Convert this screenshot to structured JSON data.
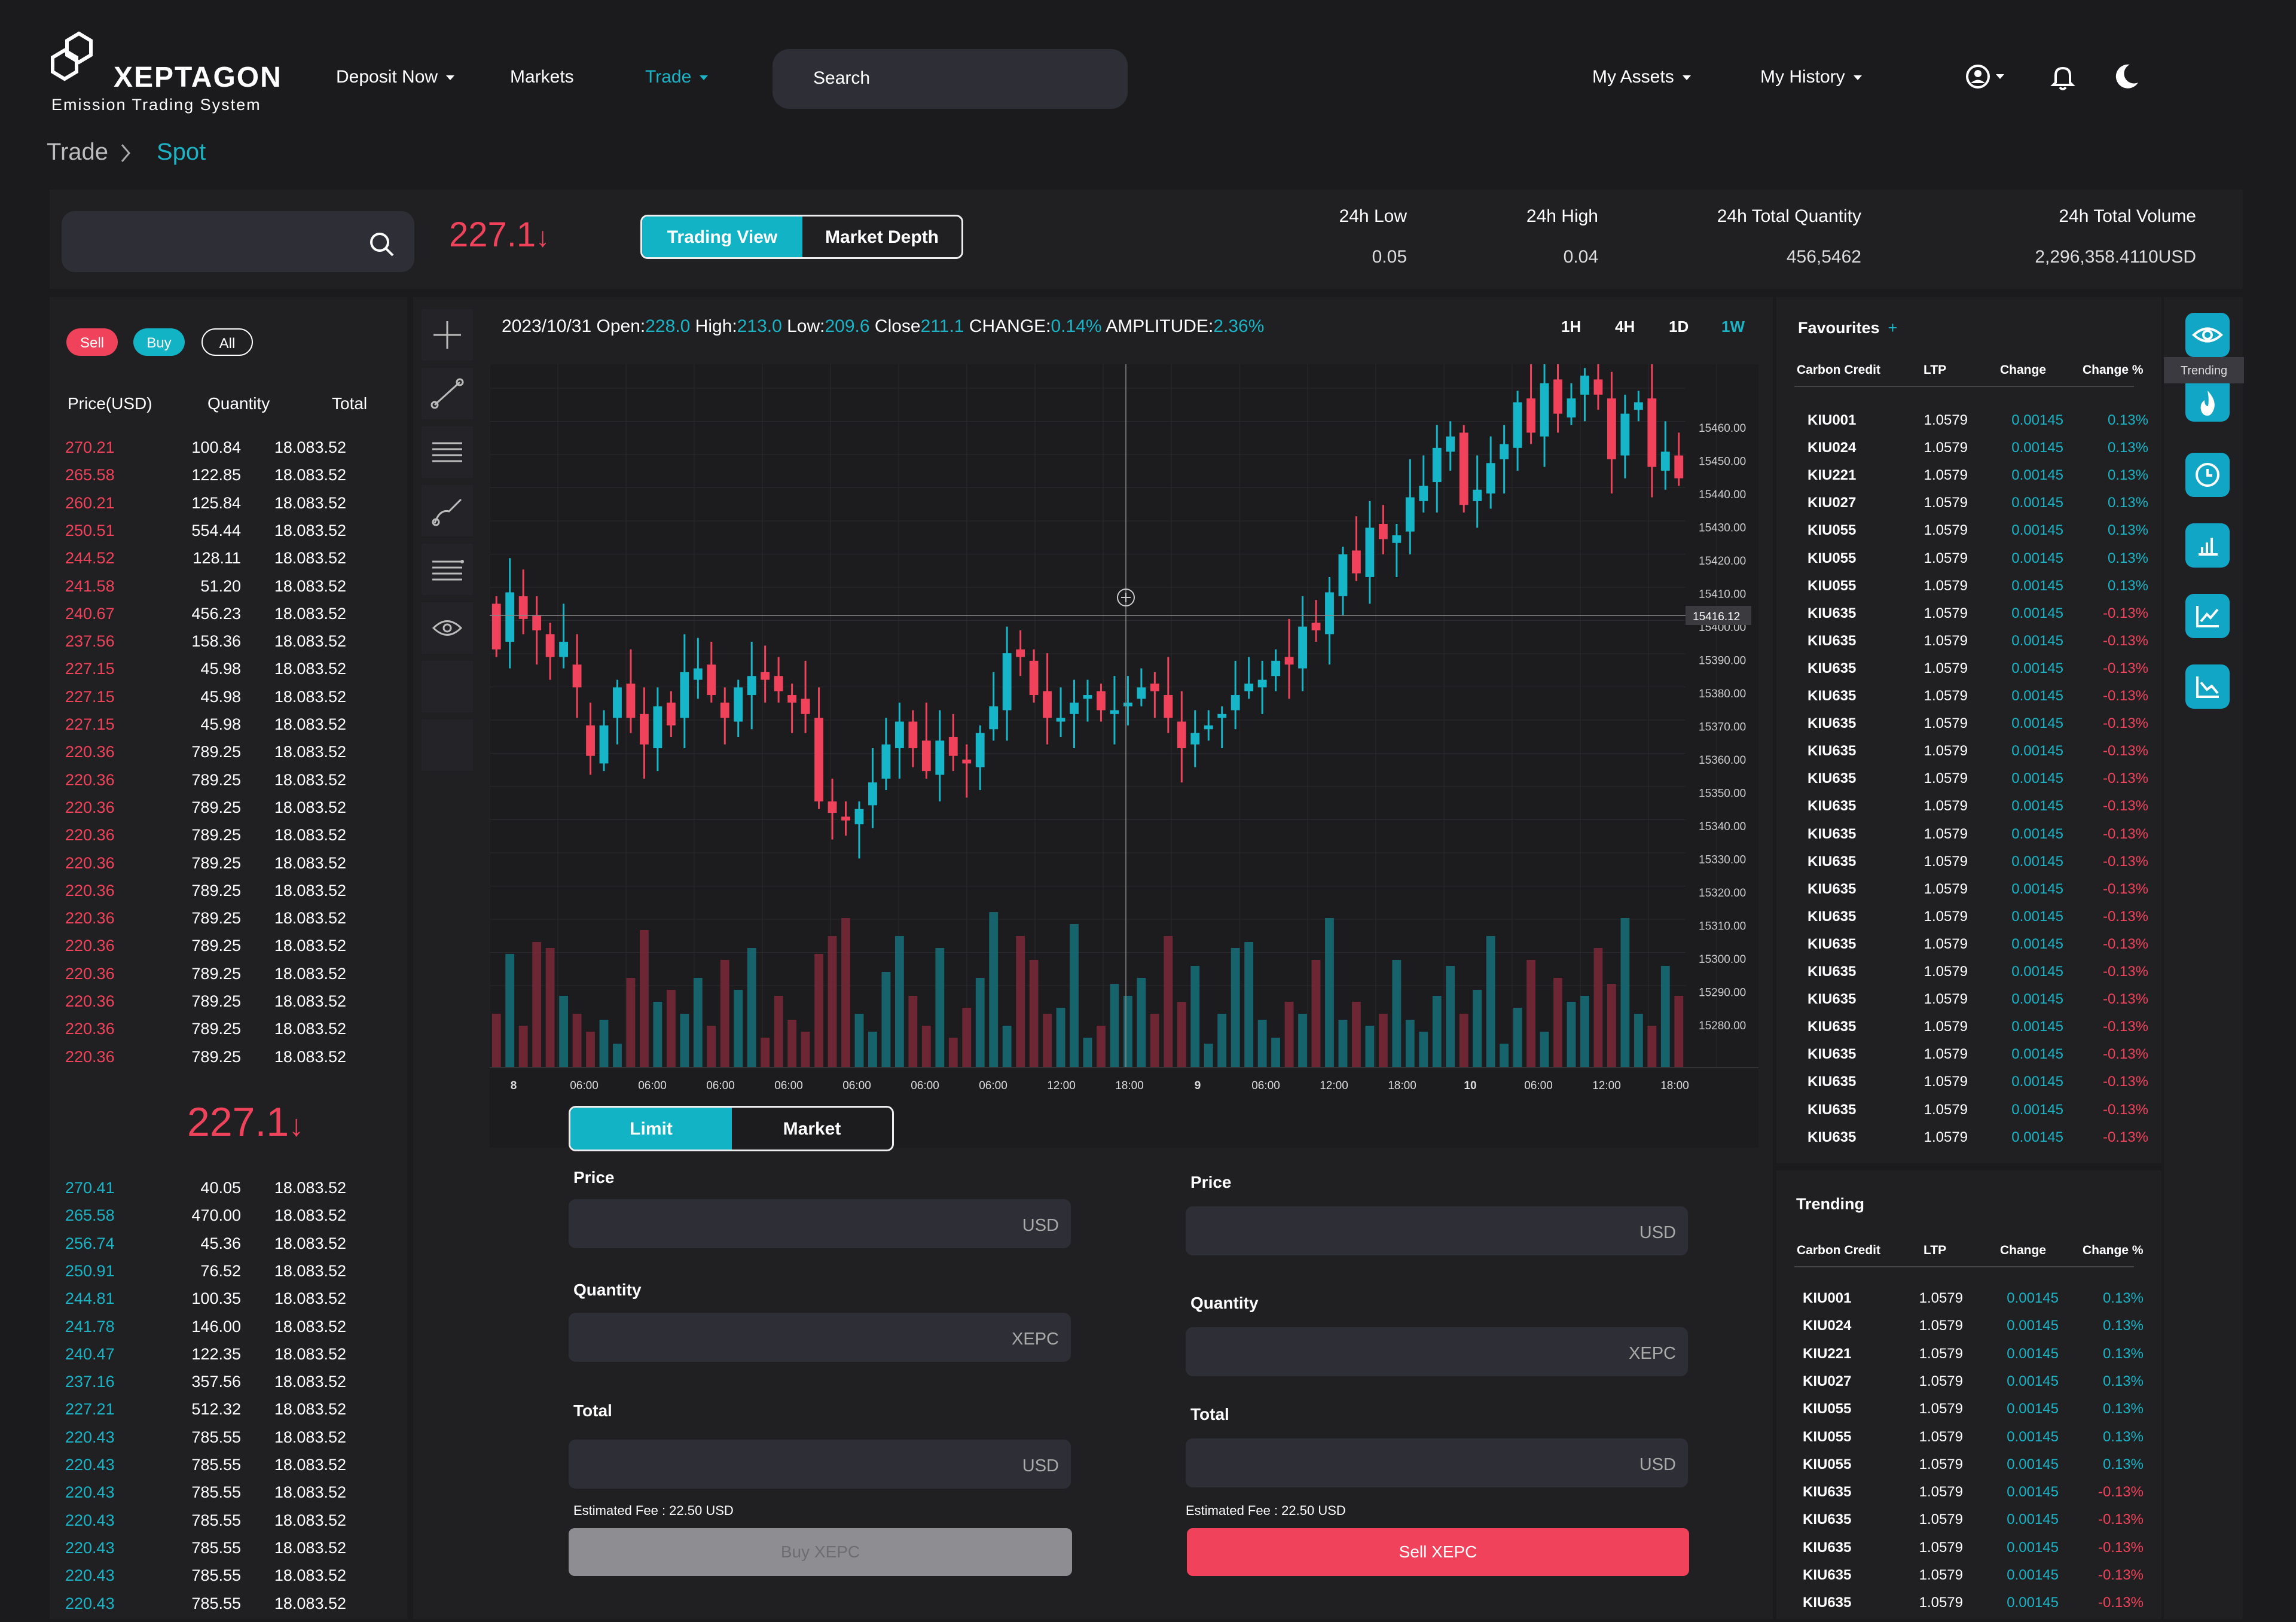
{
  "brand": {
    "name": "XEPTAGON",
    "tagline": "Emission Trading System"
  },
  "nav": {
    "deposit": "Deposit Now",
    "markets": "Markets",
    "trade": "Trade",
    "search_placeholder": "Search",
    "my_assets": "My Assets",
    "my_history": "My History"
  },
  "breadcrumb": {
    "root": "Trade",
    "current": "Spot"
  },
  "ticker": {
    "price": "227.1",
    "view_tabs": [
      "Trading View",
      "Market Depth"
    ],
    "stats": [
      {
        "label": "24h Low",
        "value": "0.05"
      },
      {
        "label": "24h High",
        "value": "0.04"
      },
      {
        "label": "24h Total Quantity",
        "value": "456,5462"
      },
      {
        "label": "24h Total Volume",
        "value": "2,296,358.4110USD"
      }
    ]
  },
  "orderbook": {
    "filters": [
      "Sell",
      "Buy",
      "All"
    ],
    "headers": [
      "Price(USD)",
      "Quantity",
      "Total"
    ],
    "sells": [
      [
        "270.21",
        "100.84",
        "18.083.52"
      ],
      [
        "265.58",
        "122.85",
        "18.083.52"
      ],
      [
        "260.21",
        "125.84",
        "18.083.52"
      ],
      [
        "250.51",
        "554.44",
        "18.083.52"
      ],
      [
        "244.52",
        "128.11",
        "18.083.52"
      ],
      [
        "241.58",
        "51.20",
        "18.083.52"
      ],
      [
        "240.67",
        "456.23",
        "18.083.52"
      ],
      [
        "237.56",
        "158.36",
        "18.083.52"
      ],
      [
        "227.15",
        "45.98",
        "18.083.52"
      ],
      [
        "227.15",
        "45.98",
        "18.083.52"
      ],
      [
        "227.15",
        "45.98",
        "18.083.52"
      ],
      [
        "220.36",
        "789.25",
        "18.083.52"
      ],
      [
        "220.36",
        "789.25",
        "18.083.52"
      ],
      [
        "220.36",
        "789.25",
        "18.083.52"
      ],
      [
        "220.36",
        "789.25",
        "18.083.52"
      ],
      [
        "220.36",
        "789.25",
        "18.083.52"
      ],
      [
        "220.36",
        "789.25",
        "18.083.52"
      ],
      [
        "220.36",
        "789.25",
        "18.083.52"
      ],
      [
        "220.36",
        "789.25",
        "18.083.52"
      ],
      [
        "220.36",
        "789.25",
        "18.083.52"
      ],
      [
        "220.36",
        "789.25",
        "18.083.52"
      ],
      [
        "220.36",
        "789.25",
        "18.083.52"
      ],
      [
        "220.36",
        "789.25",
        "18.083.52"
      ]
    ],
    "mid_price": "227.1",
    "buys": [
      [
        "270.41",
        "40.05",
        "18.083.52"
      ],
      [
        "265.58",
        "470.00",
        "18.083.52"
      ],
      [
        "256.74",
        "45.36",
        "18.083.52"
      ],
      [
        "250.91",
        "76.52",
        "18.083.52"
      ],
      [
        "244.81",
        "100.35",
        "18.083.52"
      ],
      [
        "241.78",
        "146.00",
        "18.083.52"
      ],
      [
        "240.47",
        "122.35",
        "18.083.52"
      ],
      [
        "237.16",
        "357.56",
        "18.083.52"
      ],
      [
        "227.21",
        "512.32",
        "18.083.52"
      ],
      [
        "220.43",
        "785.55",
        "18.083.52"
      ],
      [
        "220.43",
        "785.55",
        "18.083.52"
      ],
      [
        "220.43",
        "785.55",
        "18.083.52"
      ],
      [
        "220.43",
        "785.55",
        "18.083.52"
      ],
      [
        "220.43",
        "785.55",
        "18.083.52"
      ],
      [
        "220.43",
        "785.55",
        "18.083.52"
      ],
      [
        "220.43",
        "785.55",
        "18.083.52"
      ]
    ]
  },
  "chart_info": {
    "date": "2023/10/31",
    "open_label": "Open:",
    "open": "228.0",
    "high_label": "High:",
    "high": "213.0",
    "low_label": "Low:",
    "low": "209.6",
    "close_label": "Close",
    "close": "211.1",
    "change_label": "CHANGE:",
    "change": "0.14%",
    "amp_label": "AMPLITUDE:",
    "amp": "2.36%",
    "timeframes": [
      "1H",
      "4H",
      "1D",
      "1W"
    ]
  },
  "chart_data": {
    "type": "candlestick",
    "y_ticks": [
      "15460.00",
      "15450.00",
      "15440.00",
      "15430.00",
      "15420.00",
      "15410.00",
      "15400.00",
      "15390.00",
      "15380.00",
      "15370.00",
      "15360.00",
      "15350.00",
      "15340.00",
      "15330.00",
      "15320.00",
      "15310.00",
      "15300.00",
      "15290.00",
      "15280.00"
    ],
    "crosshair_label": "15416.12",
    "x_ticks": [
      "8",
      "06:00",
      "06:00",
      "06:00",
      "06:00",
      "06:00",
      "06:00",
      "06:00",
      "12:00",
      "18:00",
      "9",
      "06:00",
      "12:00",
      "18:00",
      "10",
      "06:00",
      "12:00",
      "18:00"
    ],
    "ylim": [
      15280,
      15465
    ],
    "closes": [
      15390,
      15405,
      15398,
      15395,
      15388,
      15392,
      15380,
      15362,
      15370,
      15380,
      15372,
      15365,
      15375,
      15370,
      15384,
      15385,
      15378,
      15372,
      15380,
      15383,
      15382,
      15379,
      15376,
      15373,
      15350,
      15347,
      15345,
      15348,
      15355,
      15365,
      15371,
      15364,
      15358,
      15366,
      15362,
      15360,
      15368,
      15375,
      15389,
      15388,
      15378,
      15372,
      15372,
      15376,
      15378,
      15374,
      15374,
      15376,
      15380,
      15379,
      15372,
      15364,
      15368,
      15370,
      15373,
      15378,
      15381,
      15382,
      15387,
      15386,
      15396,
      15395,
      15405,
      15415,
      15410,
      15422,
      15419,
      15420,
      15430,
      15433,
      15443,
      15446,
      15428,
      15432,
      15439,
      15444,
      15455,
      15447,
      15460,
      15452,
      15456,
      15462,
      15457,
      15440,
      15452,
      15455,
      15438,
      15442,
      15435
    ],
    "opens": [
      15402,
      15392,
      15404,
      15399,
      15394,
      15388,
      15386,
      15370,
      15360,
      15372,
      15381,
      15373,
      15364,
      15376,
      15372,
      15382,
      15386,
      15376,
      15371,
      15378,
      15384,
      15383,
      15378,
      15377,
      15372,
      15350,
      15346,
      15344,
      15349,
      15356,
      15364,
      15371,
      15366,
      15357,
      15367,
      15361,
      15359,
      15369,
      15374,
      15390,
      15387,
      15379,
      15371,
      15373,
      15377,
      15379,
      15373,
      15375,
      15377,
      15381,
      15378,
      15371,
      15365,
      15369,
      15372,
      15374,
      15379,
      15380,
      15383,
      15388,
      15385,
      15397,
      15394,
      15404,
      15416,
      15409,
      15423,
      15418,
      15421,
      15429,
      15434,
      15442,
      15447,
      15429,
      15431,
      15440,
      15443,
      15456,
      15446,
      15461,
      15451,
      15457,
      15461,
      15456,
      15441,
      15453,
      15456,
      15437,
      15441
    ],
    "volumes": [
      18,
      38,
      14,
      42,
      40,
      24,
      18,
      12,
      16,
      8,
      30,
      46,
      22,
      26,
      18,
      30,
      14,
      36,
      26,
      40,
      10,
      24,
      16,
      12,
      38,
      44,
      50,
      18,
      12,
      32,
      44,
      24,
      14,
      40,
      10,
      20,
      30,
      52,
      14,
      44,
      36,
      18,
      20,
      48,
      10,
      14,
      28,
      24,
      30,
      18,
      44,
      22,
      34,
      8,
      18,
      40,
      42,
      16,
      10,
      22,
      18,
      36,
      50,
      16,
      22,
      14,
      18,
      36,
      16,
      12,
      24,
      34,
      18,
      26,
      44,
      8,
      20,
      36,
      12,
      30,
      22,
      24,
      40,
      28,
      50,
      18,
      14,
      34,
      24
    ]
  },
  "order_form": {
    "tabs": [
      "Limit",
      "Market"
    ],
    "buy": {
      "price_label": "Price",
      "quantity_label": "Quantity",
      "total_label": "Total",
      "price_unit": "USD",
      "qty_unit": "XEPC",
      "total_unit": "USD",
      "fee": "Estimated Fee : 22.50 USD",
      "button": "Buy  XEPC"
    },
    "sell": {
      "price_label": "Price",
      "quantity_label": "Quantity",
      "total_label": "Total",
      "price_unit": "USD",
      "qty_unit": "XEPC",
      "total_unit": "USD",
      "fee": "Estimated Fee : 22.50 USD",
      "button": "Sell  XEPC"
    }
  },
  "favourites": {
    "title": "Favourites",
    "headers": [
      "Carbon Credit",
      "LTP",
      "Change",
      "Change %"
    ],
    "rows": [
      [
        "KIU001",
        "1.0579",
        "0.00145",
        "0.13%"
      ],
      [
        "KIU024",
        "1.0579",
        "0.00145",
        "0.13%"
      ],
      [
        "KIU221",
        "1.0579",
        "0.00145",
        "0.13%"
      ],
      [
        "KIU027",
        "1.0579",
        "0.00145",
        "0.13%"
      ],
      [
        "KIU055",
        "1.0579",
        "0.00145",
        "0.13%"
      ],
      [
        "KIU055",
        "1.0579",
        "0.00145",
        "0.13%"
      ],
      [
        "KIU055",
        "1.0579",
        "0.00145",
        "0.13%"
      ],
      [
        "KIU635",
        "1.0579",
        "0.00145",
        "-0.13%"
      ],
      [
        "KIU635",
        "1.0579",
        "0.00145",
        "-0.13%"
      ],
      [
        "KIU635",
        "1.0579",
        "0.00145",
        "-0.13%"
      ],
      [
        "KIU635",
        "1.0579",
        "0.00145",
        "-0.13%"
      ],
      [
        "KIU635",
        "1.0579",
        "0.00145",
        "-0.13%"
      ],
      [
        "KIU635",
        "1.0579",
        "0.00145",
        "-0.13%"
      ],
      [
        "KIU635",
        "1.0579",
        "0.00145",
        "-0.13%"
      ],
      [
        "KIU635",
        "1.0579",
        "0.00145",
        "-0.13%"
      ],
      [
        "KIU635",
        "1.0579",
        "0.00145",
        "-0.13%"
      ],
      [
        "KIU635",
        "1.0579",
        "0.00145",
        "-0.13%"
      ],
      [
        "KIU635",
        "1.0579",
        "0.00145",
        "-0.13%"
      ],
      [
        "KIU635",
        "1.0579",
        "0.00145",
        "-0.13%"
      ],
      [
        "KIU635",
        "1.0579",
        "0.00145",
        "-0.13%"
      ],
      [
        "KIU635",
        "1.0579",
        "0.00145",
        "-0.13%"
      ],
      [
        "KIU635",
        "1.0579",
        "0.00145",
        "-0.13%"
      ],
      [
        "KIU635",
        "1.0579",
        "0.00145",
        "-0.13%"
      ],
      [
        "KIU635",
        "1.0579",
        "0.00145",
        "-0.13%"
      ],
      [
        "KIU635",
        "1.0579",
        "0.00145",
        "-0.13%"
      ],
      [
        "KIU635",
        "1.0579",
        "0.00145",
        "-0.13%"
      ],
      [
        "KIU635",
        "1.0579",
        "0.00145",
        "-0.13%"
      ]
    ]
  },
  "trending": {
    "title": "Trending",
    "headers": [
      "Carbon Credit",
      "LTP",
      "Change",
      "Change %"
    ],
    "rows": [
      [
        "KIU001",
        "1.0579",
        "0.00145",
        "0.13%"
      ],
      [
        "KIU024",
        "1.0579",
        "0.00145",
        "0.13%"
      ],
      [
        "KIU221",
        "1.0579",
        "0.00145",
        "0.13%"
      ],
      [
        "KIU027",
        "1.0579",
        "0.00145",
        "0.13%"
      ],
      [
        "KIU055",
        "1.0579",
        "0.00145",
        "0.13%"
      ],
      [
        "KIU055",
        "1.0579",
        "0.00145",
        "0.13%"
      ],
      [
        "KIU055",
        "1.0579",
        "0.00145",
        "0.13%"
      ],
      [
        "KIU635",
        "1.0579",
        "0.00145",
        "-0.13%"
      ],
      [
        "KIU635",
        "1.0579",
        "0.00145",
        "-0.13%"
      ],
      [
        "KIU635",
        "1.0579",
        "0.00145",
        "-0.13%"
      ],
      [
        "KIU635",
        "1.0579",
        "0.00145",
        "-0.13%"
      ],
      [
        "KIU635",
        "1.0579",
        "0.00145",
        "-0.13%"
      ]
    ]
  },
  "sidebar": {
    "tooltip": "Trending"
  },
  "colors": {
    "accent": "#1ab4c6",
    "sell": "#f0425a",
    "bg": "#1b1b1d",
    "panel": "#202022"
  }
}
